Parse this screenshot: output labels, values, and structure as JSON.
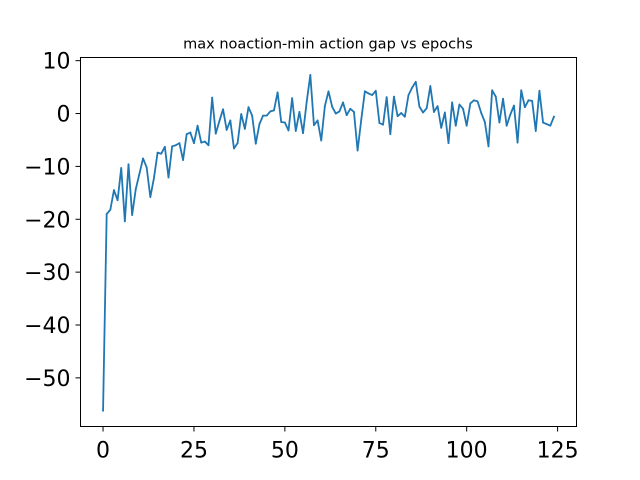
{
  "chart_data": {
    "type": "line",
    "title": "max noaction-min action gap vs epochs",
    "xlabel": "",
    "ylabel": "",
    "xlim": [
      -6.2,
      130.2
    ],
    "ylim": [
      -59.2,
      10.6
    ],
    "xticks": [
      0,
      25,
      50,
      75,
      100,
      125
    ],
    "yticks": [
      10,
      0,
      -10,
      -20,
      -30,
      -40,
      -50
    ],
    "xtick_labels": [
      "0",
      "25",
      "50",
      "75",
      "100",
      "125"
    ],
    "ytick_labels": [
      "10",
      "0",
      "−10",
      "−20",
      "−30",
      "−40",
      "−50"
    ],
    "grid": false,
    "legend": false,
    "line_color": "#1f77b4",
    "series": [
      {
        "x": [
          0,
          1,
          2,
          3,
          4,
          5,
          6,
          7,
          8,
          9,
          10,
          11,
          12,
          13,
          14,
          15,
          16,
          17,
          18,
          19,
          20,
          21,
          22,
          23,
          24,
          25,
          26,
          27,
          28,
          29,
          30,
          31,
          32,
          33,
          34,
          35,
          36,
          37,
          38,
          39,
          40,
          41,
          42,
          43,
          44,
          45,
          46,
          47,
          48,
          49,
          50,
          51,
          52,
          53,
          54,
          55,
          56,
          57,
          58,
          59,
          60,
          61,
          62,
          63,
          64,
          65,
          66,
          67,
          68,
          69,
          70,
          71,
          72,
          73,
          74,
          75,
          76,
          77,
          78,
          79,
          80,
          81,
          82,
          83,
          84,
          85,
          86,
          87,
          88,
          89,
          90,
          91,
          92,
          93,
          94,
          95,
          96,
          97,
          98,
          99,
          100,
          101,
          102,
          103,
          104,
          105,
          106,
          107,
          108,
          109,
          110,
          111,
          112,
          113,
          114,
          115,
          116,
          117,
          118,
          119,
          120,
          121,
          122,
          123,
          124
        ],
        "values": [
          -56.2,
          -19.0,
          -18.2,
          -14.5,
          -16.4,
          -10.3,
          -20.4,
          -9.6,
          -19.2,
          -14.3,
          -11.4,
          -8.5,
          -10.2,
          -15.8,
          -12.2,
          -7.4,
          -7.6,
          -6.3,
          -12.1,
          -6.2,
          -6.0,
          -5.6,
          -8.8,
          -3.9,
          -3.6,
          -5.6,
          -2.3,
          -5.5,
          -5.3,
          -6.0,
          3.0,
          -3.8,
          -1.4,
          0.8,
          -3.1,
          -1.3,
          -6.6,
          -5.6,
          -0.1,
          -2.9,
          1.2,
          -0.4,
          -5.7,
          -2.0,
          -0.4,
          -0.4,
          0.4,
          0.6,
          4.0,
          -1.6,
          -1.7,
          -3.2,
          2.9,
          -3.3,
          0.3,
          -3.7,
          2.2,
          7.3,
          -2.2,
          -1.3,
          -5.1,
          1.4,
          4.2,
          1.3,
          0.0,
          0.4,
          2.1,
          -0.3,
          0.9,
          0.3,
          -7.0,
          -1.2,
          4.2,
          3.8,
          3.5,
          4.3,
          -1.8,
          -2.1,
          3.1,
          -3.9,
          3.2,
          -0.5,
          0.1,
          -0.6,
          3.5,
          4.9,
          6.0,
          1.3,
          0.2,
          1.0,
          5.2,
          0.3,
          1.4,
          -2.7,
          0.2,
          -5.6,
          2.1,
          -2.3,
          1.7,
          0.9,
          -2.3,
          1.9,
          2.5,
          2.3,
          0.1,
          -1.6,
          -6.2,
          4.4,
          3.2,
          -1.7,
          2.8,
          -2.3,
          -0.2,
          1.5,
          -5.5,
          4.4,
          1.2,
          2.5,
          2.4,
          -3.3,
          4.3,
          -1.7,
          -2.0,
          -2.3,
          -0.6
        ]
      }
    ]
  }
}
